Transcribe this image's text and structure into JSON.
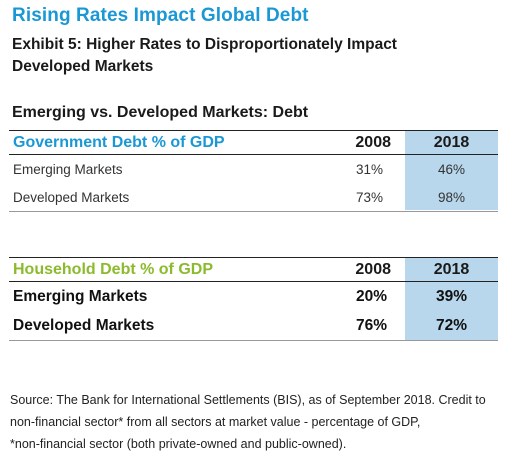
{
  "title": "Rising Rates Impact Global Debt",
  "subtitle": "Exhibit 5: Higher Rates to Disproportionately Impact Developed Markets",
  "table_title": "Emerging vs. Developed Markets: Debt",
  "gov_table": {
    "header": "Government Debt % of GDP",
    "col1": "2008",
    "col2": "2018",
    "rows": [
      {
        "label": "Emerging Markets",
        "v2008": "31%",
        "v2018": "46%"
      },
      {
        "label": "Developed Markets",
        "v2008": "73%",
        "v2018": "98%"
      }
    ]
  },
  "hh_table": {
    "header": "Household Debt % of GDP",
    "col1": "2008",
    "col2": "2018",
    "rows": [
      {
        "label": "Emerging Markets",
        "v2008": "20%",
        "v2018": "39%"
      },
      {
        "label": "Developed Markets",
        "v2008": "76%",
        "v2018": "72%"
      }
    ]
  },
  "source_lines": [
    "Source: The Bank for International Settlements (BIS), as of September 2018. Credit to",
    "non-financial sector* from all sectors at market value - percentage of GDP,",
    "*non-financial sector (both private-owned and public-owned)."
  ],
  "colors": {
    "blue": "#1a98d5",
    "green": "#8bbb2d",
    "highlight": "#b8d7ec"
  }
}
